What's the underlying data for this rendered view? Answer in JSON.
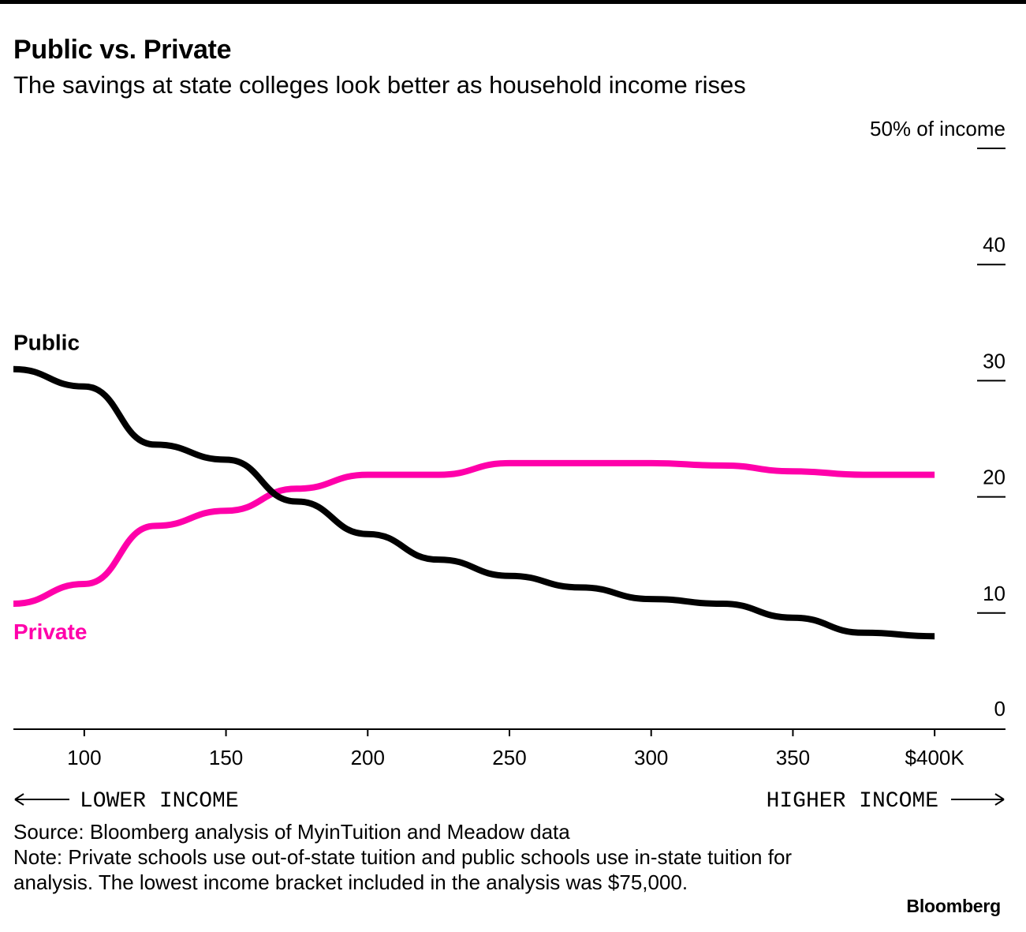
{
  "header": {
    "title": "Public vs. Private",
    "subtitle": "The savings at state colleges look better as household income rises"
  },
  "chart_data": {
    "type": "line",
    "title": "Public vs. Private",
    "subtitle": "The savings at state colleges look better as household income rises",
    "xlabel": "",
    "ylabel": "% of income",
    "xlim": [
      75,
      425
    ],
    "ylim": [
      0,
      50
    ],
    "x_ticks": [
      {
        "value": 100,
        "label": "100"
      },
      {
        "value": 150,
        "label": "150"
      },
      {
        "value": 200,
        "label": "200"
      },
      {
        "value": 250,
        "label": "250"
      },
      {
        "value": 300,
        "label": "300"
      },
      {
        "value": 350,
        "label": "350"
      },
      {
        "value": 400,
        "label": "$400K"
      }
    ],
    "y_ticks": [
      {
        "value": 0,
        "label": "0"
      },
      {
        "value": 10,
        "label": "10"
      },
      {
        "value": 20,
        "label": "20"
      },
      {
        "value": 30,
        "label": "30"
      },
      {
        "value": 40,
        "label": "40"
      },
      {
        "value": 50,
        "label": "50% of income"
      }
    ],
    "x": [
      75,
      100,
      125,
      150,
      175,
      200,
      225,
      250,
      275,
      300,
      325,
      350,
      375,
      400
    ],
    "series": [
      {
        "name": "Public",
        "color": "#000000",
        "values": [
          31.0,
          29.5,
          24.5,
          23.2,
          19.6,
          16.8,
          14.6,
          13.2,
          12.2,
          11.2,
          10.8,
          9.6,
          8.3,
          8.0
        ]
      },
      {
        "name": "Private",
        "color": "#ff00aa",
        "values": [
          10.8,
          12.5,
          17.5,
          18.8,
          20.7,
          21.9,
          21.9,
          22.9,
          22.9,
          22.9,
          22.7,
          22.2,
          21.9,
          21.9
        ]
      }
    ],
    "axis_notes": {
      "left": "LOWER INCOME",
      "right": "HIGHER INCOME"
    },
    "grid": false
  },
  "footer": {
    "source": "Source: Bloomberg analysis of MyinTuition and Meadow data",
    "note": "Note: Private schools use out-of-state tuition and public schools use in-state tuition for analysis. The lowest income bracket included in the analysis was $75,000.",
    "brand": "Bloomberg"
  }
}
